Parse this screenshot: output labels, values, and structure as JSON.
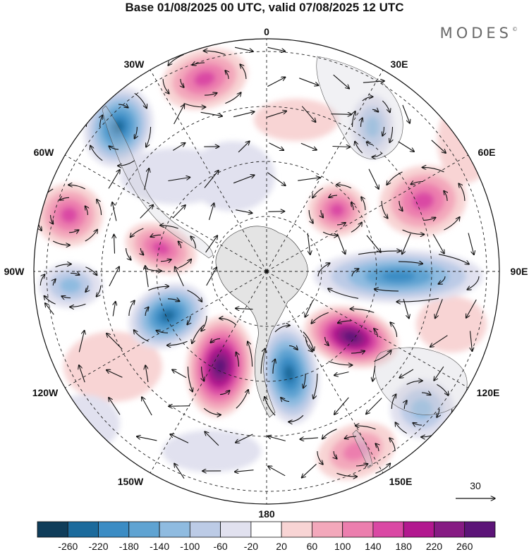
{
  "title": "Base 01/08/2025 00 UTC, valid 07/08/2025 12 UTC",
  "brand": "MODES",
  "brand_mark": "©",
  "longitude_labels": {
    "l0": "0",
    "l30e": "30E",
    "l60e": "60E",
    "l90e": "90E",
    "l120e": "120E",
    "l150e": "150E",
    "l180": "180",
    "l150w": "150W",
    "l120w": "120W",
    "l90w": "90W",
    "l60w": "60W",
    "l30w": "30W"
  },
  "reference_vector": {
    "label": "30"
  },
  "colorbar": {
    "levels": [
      "-260",
      "-220",
      "-180",
      "-140",
      "-100",
      "-60",
      "-20",
      "20",
      "60",
      "100",
      "140",
      "180",
      "220",
      "260"
    ],
    "colors": [
      "#0f3d5a",
      "#1b6a9c",
      "#3b8cc4",
      "#5fa3d2",
      "#8fbbe0",
      "#bccbe6",
      "#e1e1ef",
      "#ffffff",
      "#f8d4d4",
      "#f3a8bb",
      "#ec7eae",
      "#da48a4",
      "#b2188f",
      "#861b83",
      "#5c1478"
    ]
  },
  "anomaly_centers": [
    {
      "sign": "+",
      "value": 160,
      "name": "pos-30w"
    },
    {
      "sign": "-",
      "value": -220,
      "name": "neg-50w"
    },
    {
      "sign": "+",
      "value": 140,
      "name": "pos-75w"
    },
    {
      "sign": "+",
      "value": 160,
      "name": "pos-80w"
    },
    {
      "sign": "-",
      "value": -120,
      "name": "neg-95w"
    },
    {
      "sign": "-",
      "value": -240,
      "name": "neg-125w"
    },
    {
      "sign": "+",
      "value": 260,
      "name": "pos-160w"
    },
    {
      "sign": "-",
      "value": -240,
      "name": "neg-170e"
    },
    {
      "sign": "+",
      "value": 260,
      "name": "pos-120e"
    },
    {
      "sign": "-",
      "value": -200,
      "name": "neg-90e"
    },
    {
      "sign": "+",
      "value": 140,
      "name": "pos-55e"
    },
    {
      "sign": "+",
      "value": 140,
      "name": "pos-40e"
    },
    {
      "sign": "-",
      "value": -120,
      "name": "neg-25e"
    },
    {
      "sign": "-",
      "value": -120,
      "name": "neg-125e"
    },
    {
      "sign": "+",
      "value": 100,
      "name": "pos-145e"
    }
  ]
}
